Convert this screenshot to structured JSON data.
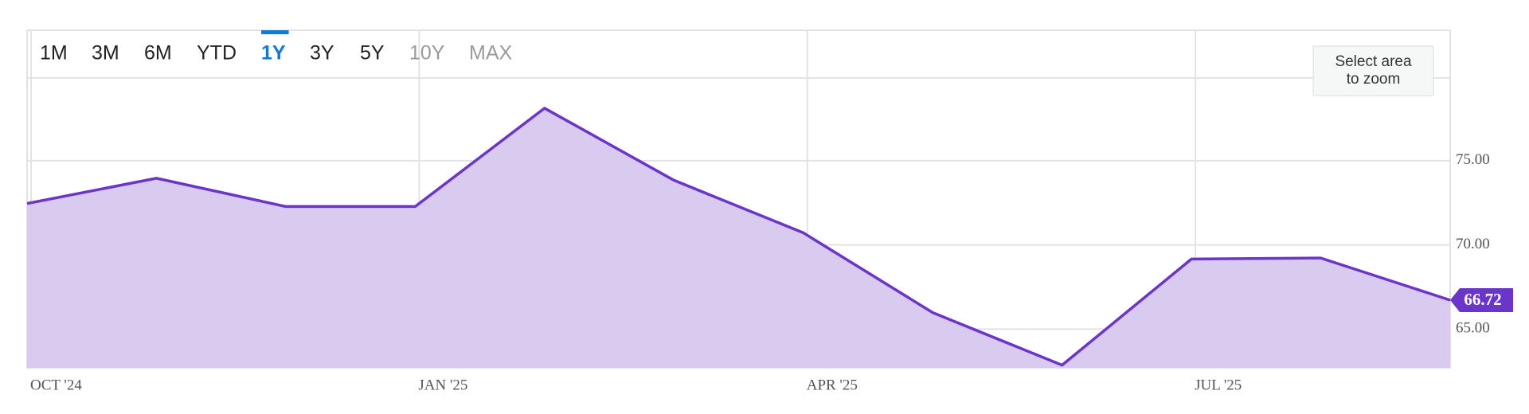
{
  "chart_data": {
    "type": "area",
    "range_buttons": [
      "1M",
      "3M",
      "6M",
      "YTD",
      "1Y",
      "3Y",
      "5Y",
      "10Y",
      "MAX"
    ],
    "active_range": "1Y",
    "disabled_ranges": [
      "10Y",
      "MAX"
    ],
    "zoom_button": "Select area to zoom",
    "categories": [
      "OCT '24",
      null,
      null,
      "JAN '25",
      null,
      null,
      "APR '25",
      null,
      null,
      "JUL '25",
      null,
      null
    ],
    "values": [
      72.46,
      73.96,
      72.28,
      72.28,
      78.12,
      73.84,
      70.72,
      65.98,
      62.86,
      69.16,
      69.22,
      66.72
    ],
    "color": "#6c35c9",
    "fill": "#d8cbef",
    "ylim": [
      62.7,
      82.75
    ],
    "yticks": [
      {
        "value": 65,
        "label": "65.00"
      },
      {
        "value": 70,
        "label": "70.00"
      },
      {
        "value": 75,
        "label": "75.00"
      }
    ],
    "grid": true
  }
}
